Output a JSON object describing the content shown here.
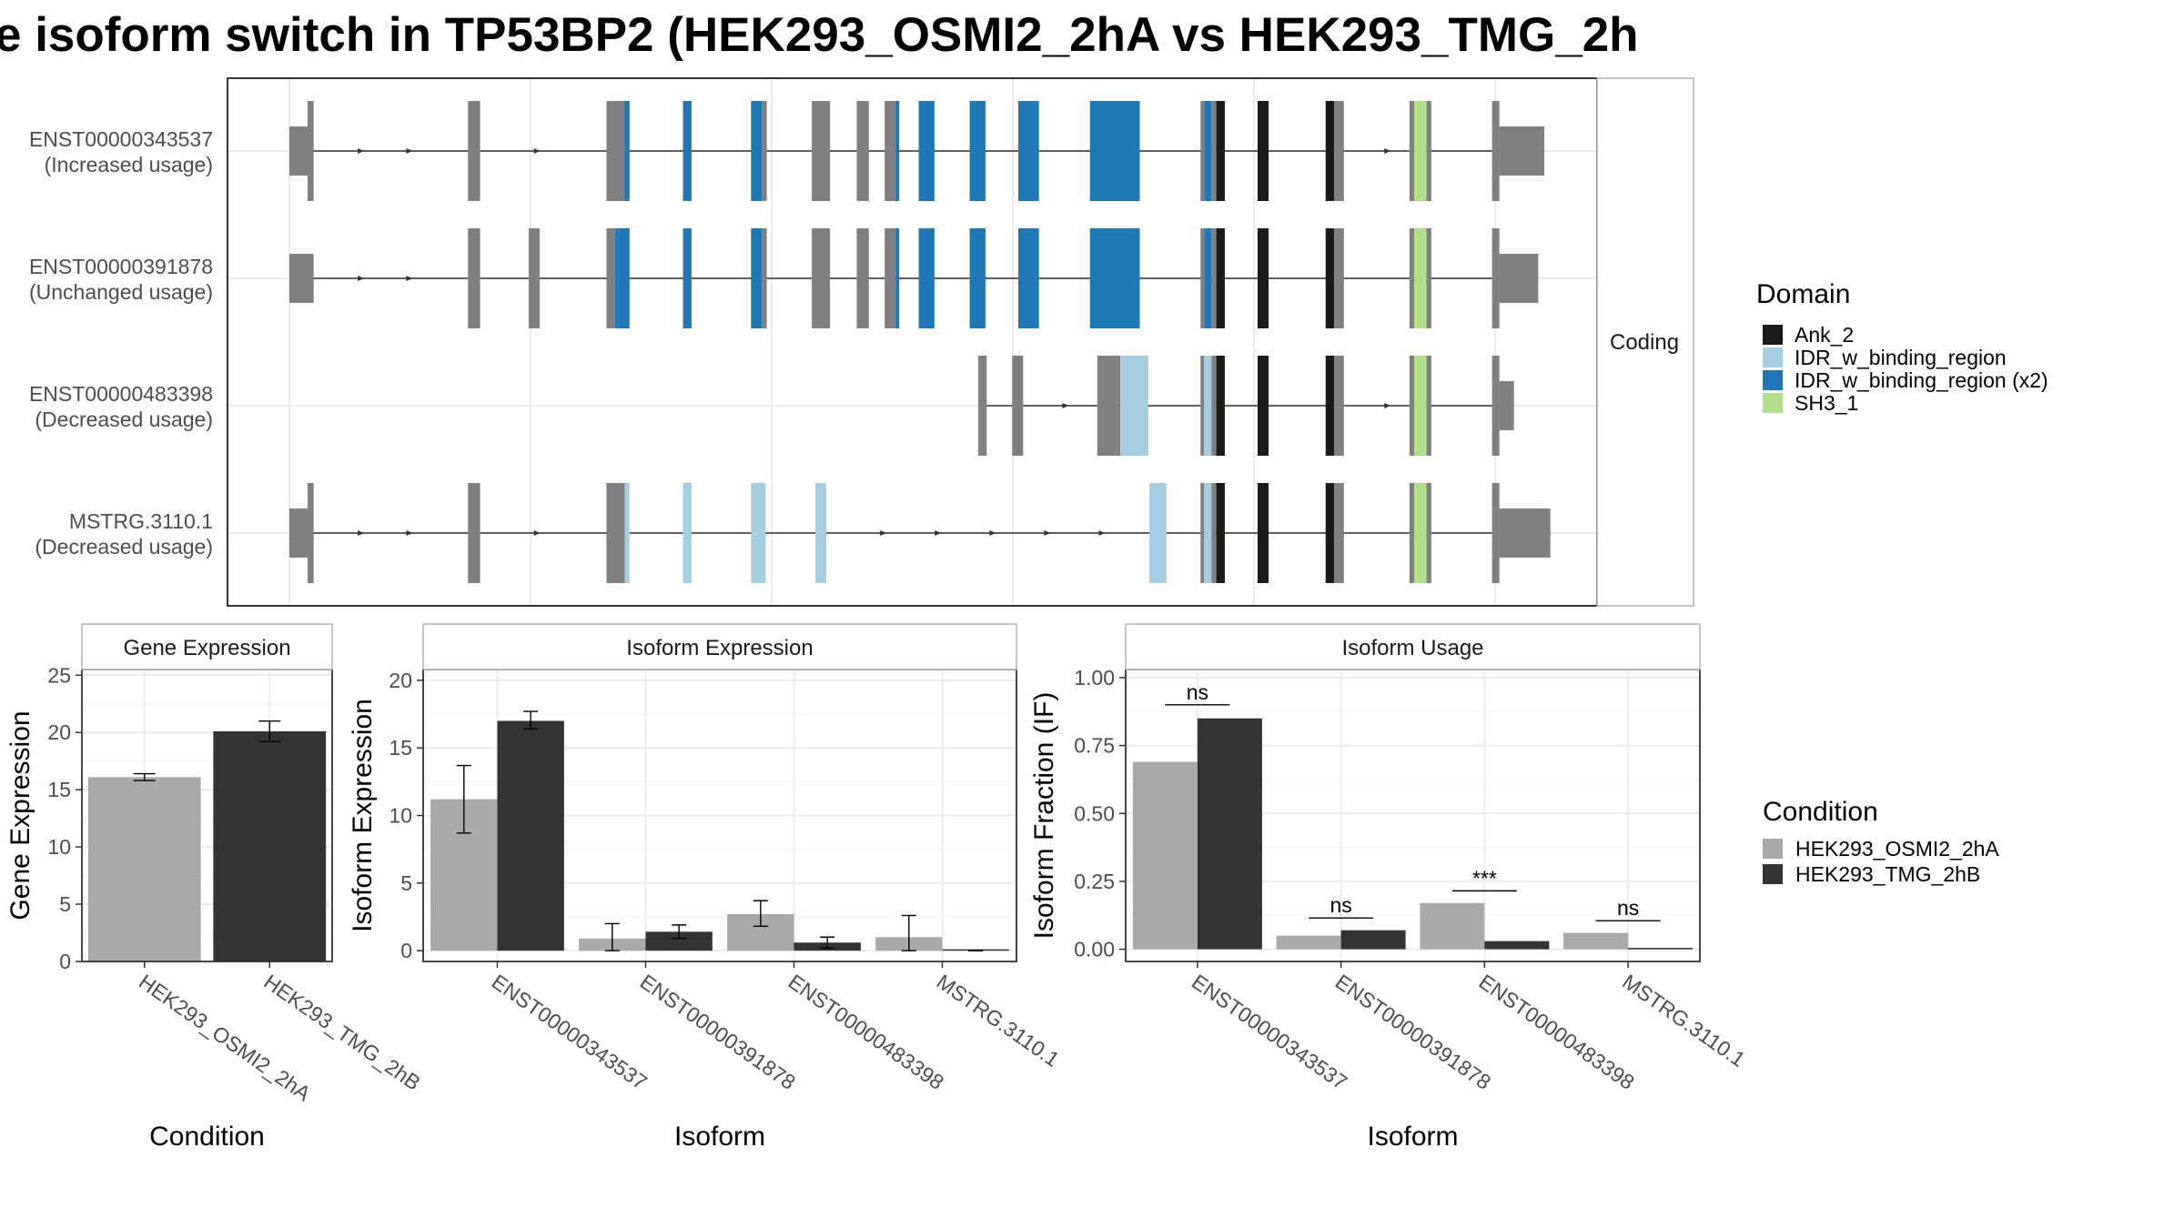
{
  "title": "e isoform switch in TP53BP2 (HEK293_OSMI2_2hA vs HEK293_TMG_2h",
  "colors": {
    "exon_gray": "#808080",
    "ank": "#1a1a1a",
    "idr_light": "#a6cee3",
    "idr_dark": "#1f78b4",
    "sh3": "#b2df8a",
    "cond_a": "#a9a9a9",
    "cond_b": "#333333",
    "grid": "#ebebeb",
    "frame": "#333333",
    "strip_bg": "#ffffff"
  },
  "structure": {
    "facet_label": "Coding",
    "transcripts": [
      {
        "id": "ENST00000343537",
        "usage": "(Increased usage)",
        "features": [
          {
            "s": 0.0,
            "e": 0.018,
            "t": "utr"
          },
          {
            "s": 0.015,
            "e": 0.02,
            "t": "g"
          },
          {
            "s": 0.147,
            "e": 0.157,
            "t": "g"
          },
          {
            "s": 0.261,
            "e": 0.276,
            "t": "g"
          },
          {
            "s": 0.276,
            "e": 0.28,
            "t": "dk"
          },
          {
            "s": 0.324,
            "e": 0.331,
            "t": "dk"
          },
          {
            "s": 0.38,
            "e": 0.389,
            "t": "dk"
          },
          {
            "s": 0.389,
            "e": 0.393,
            "t": "g"
          },
          {
            "s": 0.43,
            "e": 0.445,
            "t": "g"
          },
          {
            "s": 0.467,
            "e": 0.477,
            "t": "g"
          },
          {
            "s": 0.49,
            "e": 0.499,
            "t": "g"
          },
          {
            "s": 0.499,
            "e": 0.502,
            "t": "dk"
          },
          {
            "s": 0.518,
            "e": 0.531,
            "t": "dk"
          },
          {
            "s": 0.56,
            "e": 0.573,
            "t": "dk"
          },
          {
            "s": 0.6,
            "e": 0.617,
            "t": "dk"
          },
          {
            "s": 0.659,
            "e": 0.7,
            "t": "dk"
          },
          {
            "s": 0.75,
            "e": 0.753,
            "t": "g"
          },
          {
            "s": 0.753,
            "e": 0.759,
            "t": "dk"
          },
          {
            "s": 0.759,
            "e": 0.763,
            "t": "g"
          },
          {
            "s": 0.763,
            "e": 0.77,
            "t": "ank"
          },
          {
            "s": 0.797,
            "e": 0.806,
            "t": "ank"
          },
          {
            "s": 0.853,
            "e": 0.86,
            "t": "ank"
          },
          {
            "s": 0.86,
            "e": 0.868,
            "t": "g"
          },
          {
            "s": 0.922,
            "e": 0.926,
            "t": "g"
          },
          {
            "s": 0.926,
            "e": 0.936,
            "t": "sh3"
          },
          {
            "s": 0.936,
            "e": 0.94,
            "t": "g"
          },
          {
            "s": 0.99,
            "e": 0.996,
            "t": "g"
          },
          {
            "s": 0.996,
            "e": 1.033,
            "t": "utr"
          }
        ],
        "arrows": [
          0.06,
          0.1,
          0.205,
          0.905
        ]
      },
      {
        "id": "ENST00000391878",
        "usage": "(Unchanged usage)",
        "features": [
          {
            "s": 0.0,
            "e": 0.02,
            "t": "utr"
          },
          {
            "s": 0.147,
            "e": 0.157,
            "t": "g"
          },
          {
            "s": 0.197,
            "e": 0.206,
            "t": "g"
          },
          {
            "s": 0.261,
            "e": 0.268,
            "t": "g"
          },
          {
            "s": 0.268,
            "e": 0.271,
            "t": "dk"
          },
          {
            "s": 0.271,
            "e": 0.28,
            "t": "dk"
          },
          {
            "s": 0.324,
            "e": 0.331,
            "t": "dk"
          },
          {
            "s": 0.38,
            "e": 0.389,
            "t": "dk"
          },
          {
            "s": 0.389,
            "e": 0.393,
            "t": "g"
          },
          {
            "s": 0.43,
            "e": 0.445,
            "t": "g"
          },
          {
            "s": 0.467,
            "e": 0.477,
            "t": "g"
          },
          {
            "s": 0.49,
            "e": 0.499,
            "t": "g"
          },
          {
            "s": 0.499,
            "e": 0.502,
            "t": "dk"
          },
          {
            "s": 0.518,
            "e": 0.531,
            "t": "dk"
          },
          {
            "s": 0.56,
            "e": 0.573,
            "t": "dk"
          },
          {
            "s": 0.6,
            "e": 0.617,
            "t": "dk"
          },
          {
            "s": 0.659,
            "e": 0.7,
            "t": "dk"
          },
          {
            "s": 0.75,
            "e": 0.753,
            "t": "g"
          },
          {
            "s": 0.753,
            "e": 0.759,
            "t": "dk"
          },
          {
            "s": 0.759,
            "e": 0.763,
            "t": "g"
          },
          {
            "s": 0.763,
            "e": 0.77,
            "t": "ank"
          },
          {
            "s": 0.797,
            "e": 0.806,
            "t": "ank"
          },
          {
            "s": 0.853,
            "e": 0.86,
            "t": "ank"
          },
          {
            "s": 0.86,
            "e": 0.868,
            "t": "g"
          },
          {
            "s": 0.922,
            "e": 0.926,
            "t": "g"
          },
          {
            "s": 0.926,
            "e": 0.936,
            "t": "sh3"
          },
          {
            "s": 0.936,
            "e": 0.94,
            "t": "g"
          },
          {
            "s": 0.99,
            "e": 0.996,
            "t": "g"
          },
          {
            "s": 0.996,
            "e": 1.028,
            "t": "utr"
          }
        ],
        "arrows": [
          0.06,
          0.1
        ]
      },
      {
        "id": "ENST00000483398",
        "usage": "(Decreased usage)",
        "features": [
          {
            "s": 0.567,
            "e": 0.574,
            "t": "g"
          },
          {
            "s": 0.595,
            "e": 0.604,
            "t": "g"
          },
          {
            "s": 0.665,
            "e": 0.681,
            "t": "g"
          },
          {
            "s": 0.681,
            "e": 0.684,
            "t": "g"
          },
          {
            "s": 0.684,
            "e": 0.707,
            "t": "lt"
          },
          {
            "s": 0.75,
            "e": 0.753,
            "t": "g"
          },
          {
            "s": 0.753,
            "e": 0.759,
            "t": "lt"
          },
          {
            "s": 0.759,
            "e": 0.763,
            "t": "g"
          },
          {
            "s": 0.763,
            "e": 0.77,
            "t": "ank"
          },
          {
            "s": 0.797,
            "e": 0.806,
            "t": "ank"
          },
          {
            "s": 0.853,
            "e": 0.86,
            "t": "ank"
          },
          {
            "s": 0.86,
            "e": 0.868,
            "t": "g"
          },
          {
            "s": 0.922,
            "e": 0.926,
            "t": "g"
          },
          {
            "s": 0.926,
            "e": 0.936,
            "t": "sh3"
          },
          {
            "s": 0.936,
            "e": 0.94,
            "t": "g"
          },
          {
            "s": 0.99,
            "e": 0.996,
            "t": "g"
          },
          {
            "s": 0.996,
            "e": 1.008,
            "t": "utr"
          }
        ],
        "arrows": [
          0.64,
          0.905
        ]
      },
      {
        "id": "MSTRG.3110.1",
        "usage": "(Decreased usage)",
        "features": [
          {
            "s": 0.0,
            "e": 0.018,
            "t": "utr"
          },
          {
            "s": 0.015,
            "e": 0.02,
            "t": "g"
          },
          {
            "s": 0.147,
            "e": 0.157,
            "t": "g"
          },
          {
            "s": 0.261,
            "e": 0.276,
            "t": "g"
          },
          {
            "s": 0.276,
            "e": 0.28,
            "t": "lt"
          },
          {
            "s": 0.324,
            "e": 0.331,
            "t": "lt"
          },
          {
            "s": 0.38,
            "e": 0.392,
            "t": "lt"
          },
          {
            "s": 0.433,
            "e": 0.442,
            "t": "lt"
          },
          {
            "s": 0.708,
            "e": 0.722,
            "t": "lt"
          },
          {
            "s": 0.75,
            "e": 0.753,
            "t": "g"
          },
          {
            "s": 0.753,
            "e": 0.759,
            "t": "lt"
          },
          {
            "s": 0.759,
            "e": 0.763,
            "t": "g"
          },
          {
            "s": 0.763,
            "e": 0.77,
            "t": "ank"
          },
          {
            "s": 0.797,
            "e": 0.806,
            "t": "ank"
          },
          {
            "s": 0.853,
            "e": 0.86,
            "t": "ank"
          },
          {
            "s": 0.86,
            "e": 0.868,
            "t": "g"
          },
          {
            "s": 0.922,
            "e": 0.926,
            "t": "g"
          },
          {
            "s": 0.926,
            "e": 0.936,
            "t": "sh3"
          },
          {
            "s": 0.936,
            "e": 0.94,
            "t": "g"
          },
          {
            "s": 0.99,
            "e": 0.996,
            "t": "g"
          },
          {
            "s": 0.996,
            "e": 1.038,
            "t": "utr"
          }
        ],
        "arrows": [
          0.06,
          0.1,
          0.205,
          0.49,
          0.535,
          0.58,
          0.625,
          0.67
        ]
      }
    ]
  },
  "domain_legend": {
    "title": "Domain",
    "items": [
      {
        "label": "Ank_2",
        "color": "#1a1a1a"
      },
      {
        "label": "IDR_w_binding_region",
        "color": "#a6cee3"
      },
      {
        "label": "IDR_w_binding_region (x2)",
        "color": "#1f78b4"
      },
      {
        "label": "SH3_1",
        "color": "#b2df8a"
      }
    ]
  },
  "condition_legend": {
    "title": "Condition",
    "items": [
      {
        "label": "HEK293_OSMI2_2hA",
        "color": "#a9a9a9"
      },
      {
        "label": "HEK293_TMG_2hB",
        "color": "#333333"
      }
    ]
  },
  "chart_data": [
    {
      "type": "bar",
      "title": "Gene Expression",
      "xlabel": "Condition",
      "ylabel": "Gene Expression",
      "ylim": [
        0,
        25.5
      ],
      "yticks": [
        0,
        5,
        10,
        15,
        20,
        25
      ],
      "ytick_labels": [
        "0",
        "5",
        "10",
        "15",
        "20",
        "25"
      ],
      "categories": [
        "HEK293_OSMI2_2hA",
        "HEK293_TMG_2hB"
      ],
      "values": [
        16.1,
        20.1
      ],
      "errors": [
        [
          15.8,
          16.4
        ],
        [
          19.2,
          21.0
        ]
      ],
      "colors": [
        "#a9a9a9",
        "#333333"
      ],
      "grid": true
    },
    {
      "type": "bar",
      "title": "Isoform Expression",
      "xlabel": "Isoform",
      "ylabel": "Isoform Expression",
      "ylim": [
        -0.8,
        20.8
      ],
      "yticks": [
        0,
        5,
        10,
        15,
        20
      ],
      "ytick_labels": [
        "0",
        "5",
        "10",
        "15",
        "20"
      ],
      "categories": [
        "ENST00000343537",
        "ENST00000391878",
        "ENST00000483398",
        "MSTRG.3110.1"
      ],
      "series": [
        {
          "name": "HEK293_OSMI2_2hA",
          "values": [
            11.2,
            0.9,
            2.7,
            1.0
          ],
          "errors": [
            [
              8.7,
              13.7
            ],
            [
              0.0,
              2.0
            ],
            [
              1.8,
              3.7
            ],
            [
              0.0,
              2.6
            ]
          ]
        },
        {
          "name": "HEK293_TMG_2hB",
          "values": [
            17.0,
            1.4,
            0.6,
            0.0
          ],
          "errors": [
            [
              16.4,
              17.7
            ],
            [
              0.9,
              1.9
            ],
            [
              0.2,
              1.0
            ],
            [
              0.0,
              0.0
            ]
          ]
        }
      ],
      "grid": true
    },
    {
      "type": "bar",
      "title": "Isoform Usage",
      "xlabel": "Isoform",
      "ylabel": "Isoform Fraction (IF)",
      "ylim": [
        -0.045,
        1.03
      ],
      "yticks": [
        0,
        0.25,
        0.5,
        0.75,
        1.0
      ],
      "ytick_labels": [
        "0.00",
        "0.25",
        "0.50",
        "0.75",
        "1.00"
      ],
      "categories": [
        "ENST00000343537",
        "ENST00000391878",
        "ENST00000483398",
        "MSTRG.3110.1"
      ],
      "series": [
        {
          "name": "HEK293_OSMI2_2hA",
          "values": [
            0.69,
            0.05,
            0.17,
            0.06
          ]
        },
        {
          "name": "HEK293_TMG_2hB",
          "values": [
            0.85,
            0.07,
            0.03,
            0.0
          ]
        }
      ],
      "significance": [
        {
          "label": "ns",
          "y": 0.9
        },
        {
          "label": "ns",
          "y": 0.115
        },
        {
          "label": "***",
          "y": 0.215
        },
        {
          "label": "ns",
          "y": 0.105
        }
      ],
      "grid": true
    }
  ]
}
